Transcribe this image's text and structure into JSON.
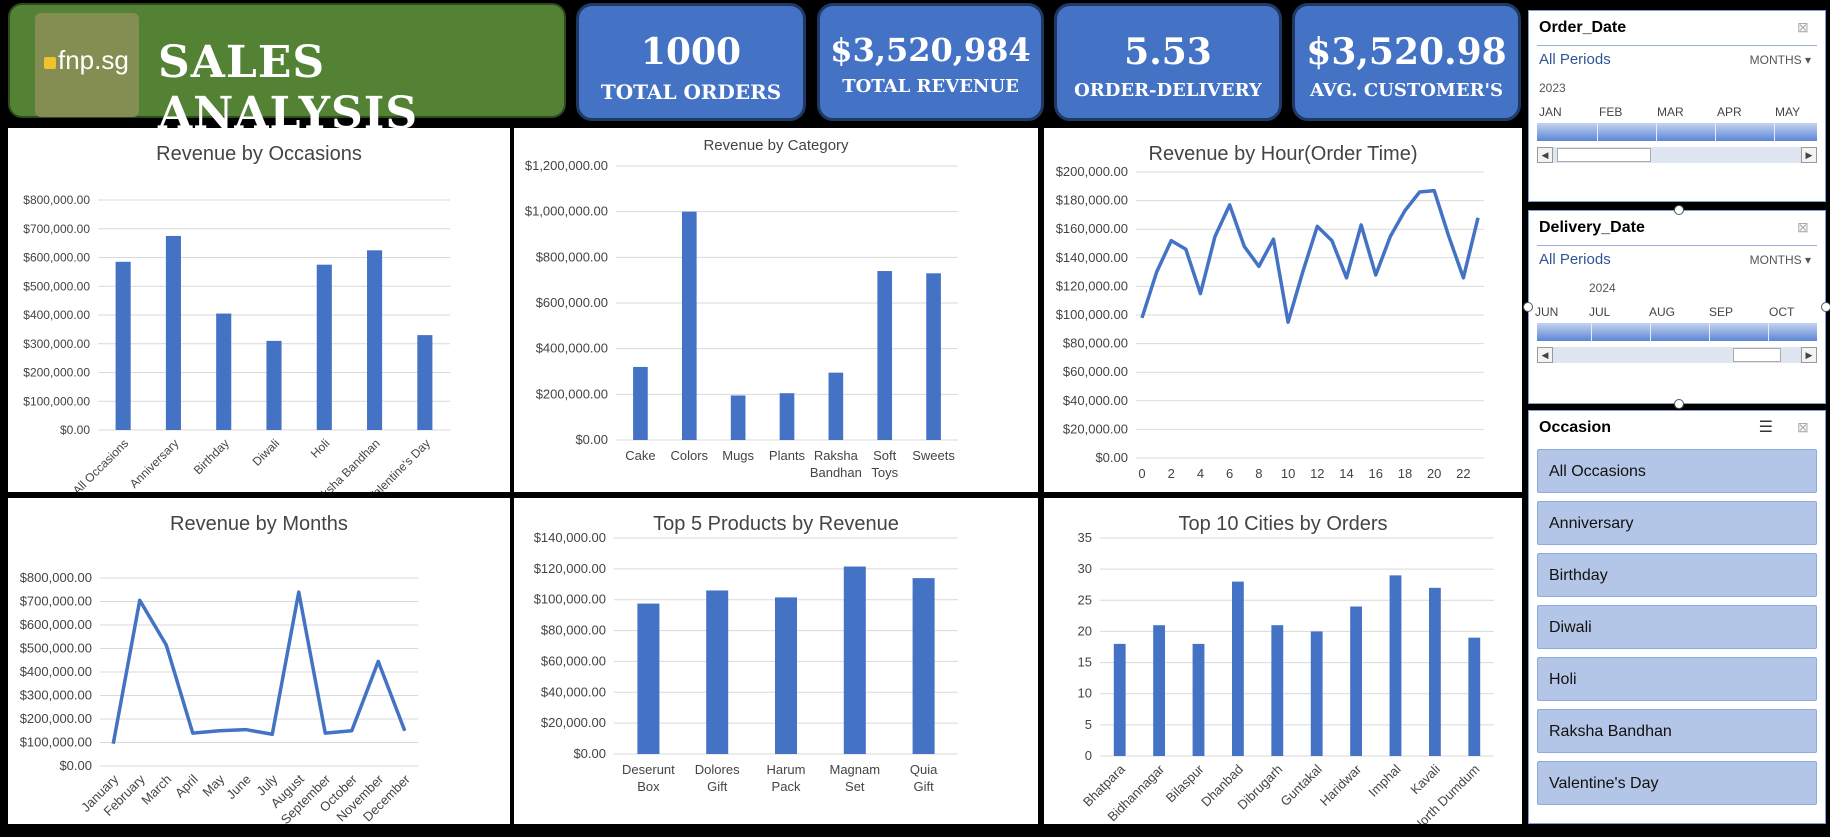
{
  "header": {
    "logo_text": "fnp.sg",
    "title": "SALES ANALYSIS"
  },
  "kpis": [
    {
      "value": "1000",
      "label": "TOTAL ORDERS"
    },
    {
      "value": "$3,520,984",
      "label": "TOTAL REVENUE"
    },
    {
      "value": "5.53",
      "label": "ORDER-DELIVERY"
    },
    {
      "value": "$3,520.98",
      "label": "AVG. CUSTOMER'S"
    }
  ],
  "chart_data": [
    {
      "id": "occasions",
      "type": "bar",
      "title": "Revenue by Occasions",
      "categories": [
        "All Occasions",
        "Anniversary",
        "Birthday",
        "Diwali",
        "Holi",
        "Raksha Bandhan",
        "Valentine's Day"
      ],
      "values": [
        585000,
        675000,
        405000,
        310000,
        575000,
        625000,
        330000
      ],
      "ylim": [
        0,
        800000
      ],
      "yticks": [
        "$0.00",
        "$100,000.00",
        "$200,000.00",
        "$300,000.00",
        "$400,000.00",
        "$500,000.00",
        "$600,000.00",
        "$700,000.00",
        "$800,000.00"
      ],
      "grid": true
    },
    {
      "id": "category",
      "type": "bar",
      "title": "Revenue by Category",
      "categories": [
        "Cake",
        "Colors",
        "Mugs",
        "Plants",
        "Raksha Bandhan",
        "Soft Toys",
        "Sweets"
      ],
      "values": [
        320000,
        1000000,
        195000,
        205000,
        295000,
        740000,
        730000
      ],
      "ylim": [
        0,
        1200000
      ],
      "yticks": [
        "$0.00",
        "$200,000.00",
        "$400,000.00",
        "$600,000.00",
        "$800,000.00",
        "$1,000,000.00",
        "$1,200,000.00"
      ],
      "grid": true
    },
    {
      "id": "hour",
      "type": "line",
      "title": "Revenue by Hour(Order Time)",
      "x": [
        0,
        1,
        2,
        3,
        4,
        5,
        6,
        7,
        8,
        9,
        10,
        11,
        12,
        13,
        14,
        15,
        16,
        17,
        18,
        19,
        20,
        21,
        22,
        23
      ],
      "xticks": [
        "0",
        "2",
        "4",
        "6",
        "8",
        "10",
        "12",
        "14",
        "16",
        "18",
        "20",
        "22"
      ],
      "values": [
        98000,
        130000,
        152000,
        146000,
        115000,
        155000,
        177000,
        148000,
        134000,
        153000,
        95000,
        130000,
        162000,
        152000,
        126000,
        163000,
        128000,
        155000,
        173000,
        186000,
        187000,
        155000,
        126000,
        168000
      ],
      "ylim": [
        0,
        200000
      ],
      "yticks": [
        "$0.00",
        "$20,000.00",
        "$40,000.00",
        "$60,000.00",
        "$80,000.00",
        "$100,000.00",
        "$120,000.00",
        "$140,000.00",
        "$160,000.00",
        "$180,000.00",
        "$200,000.00"
      ],
      "grid": true
    },
    {
      "id": "months",
      "type": "line",
      "title": "Revenue by Months",
      "categories": [
        "January",
        "February",
        "March",
        "April",
        "May",
        "June",
        "July",
        "August",
        "September",
        "October",
        "November",
        "December"
      ],
      "values": [
        95000,
        705000,
        515000,
        140000,
        150000,
        155000,
        135000,
        740000,
        140000,
        150000,
        445000,
        150000
      ],
      "ylim": [
        0,
        800000
      ],
      "yticks": [
        "$0.00",
        "$100,000.00",
        "$200,000.00",
        "$300,000.00",
        "$400,000.00",
        "$500,000.00",
        "$600,000.00",
        "$700,000.00",
        "$800,000.00"
      ],
      "grid": true
    },
    {
      "id": "products",
      "type": "bar",
      "title": "Top 5 Products by Revenue",
      "categories": [
        "Deserunt Box",
        "Dolores Gift",
        "Harum Pack",
        "Magnam Set",
        "Quia Gift"
      ],
      "values": [
        97500,
        106000,
        101500,
        121500,
        114000
      ],
      "ylim": [
        0,
        140000
      ],
      "yticks": [
        "$0.00",
        "$20,000.00",
        "$40,000.00",
        "$60,000.00",
        "$80,000.00",
        "$100,000.00",
        "$120,000.00",
        "$140,000.00"
      ],
      "grid": true
    },
    {
      "id": "cities",
      "type": "bar",
      "title": "Top 10 Cities by Orders",
      "categories": [
        "Bhatpara",
        "Bidhannagar",
        "Bilaspur",
        "Dhanbad",
        "Dibrugarh",
        "Guntakal",
        "Haridwar",
        "Imphal",
        "Kavali",
        "North Dumdum"
      ],
      "values": [
        18,
        21,
        18,
        28,
        21,
        20,
        24,
        29,
        27,
        19
      ],
      "ylim": [
        0,
        35
      ],
      "yticks": [
        "0",
        "5",
        "10",
        "15",
        "20",
        "25",
        "30",
        "35"
      ],
      "grid": true
    }
  ],
  "slicers": {
    "order_date": {
      "title": "Order_Date",
      "period": "All Periods",
      "unit": "MONTHS",
      "year": "2023",
      "months": [
        "JAN",
        "FEB",
        "MAR",
        "APR",
        "MAY"
      ]
    },
    "delivery_date": {
      "title": "Delivery_Date",
      "period": "All Periods",
      "unit": "MONTHS",
      "year": "2024",
      "months": [
        "JUN",
        "JUL",
        "AUG",
        "SEP",
        "OCT"
      ]
    },
    "occasion": {
      "title": "Occasion",
      "items": [
        "All Occasions",
        "Anniversary",
        "Birthday",
        "Diwali",
        "Holi",
        "Raksha Bandhan",
        "Valentine's Day"
      ]
    }
  },
  "colors": {
    "series": "#4472c4",
    "banner": "#548235",
    "kpi": "#4472c4"
  }
}
